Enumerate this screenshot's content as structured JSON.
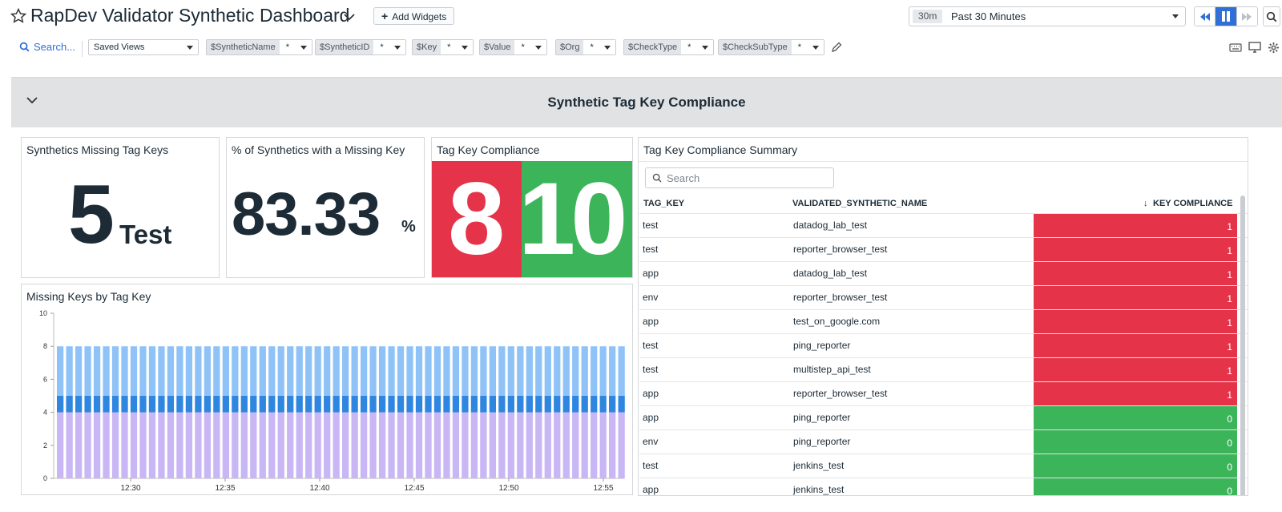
{
  "header": {
    "title": "RapDev Validator Synthetic Dashboard",
    "add_widgets": "Add Widgets",
    "time_chip": "30m",
    "time_range": "Past 30 Minutes"
  },
  "filters": {
    "search": "Search...",
    "saved_views": "Saved Views",
    "vars": [
      {
        "name": "$SyntheticName",
        "value": "*"
      },
      {
        "name": "$SyntheticID",
        "value": "*"
      },
      {
        "name": "$Key",
        "value": "*"
      },
      {
        "name": "$Value",
        "value": "*"
      },
      {
        "name": "$Org",
        "value": "*"
      },
      {
        "name": "$CheckType",
        "value": "*"
      },
      {
        "name": "$CheckSubType",
        "value": "*"
      }
    ]
  },
  "group": {
    "title": "Synthetic Tag Key Compliance"
  },
  "widgets": {
    "missing_keys": {
      "title": "Synthetics Missing Tag Keys",
      "value": "5",
      "unit": "Test"
    },
    "pct_missing": {
      "title": "% of Synthetics with a Missing Key",
      "value": "83.33",
      "unit": "%"
    },
    "compliance": {
      "title": "Tag Key Compliance",
      "red_value": "8",
      "green_value": "10",
      "red_color": "#e5344a",
      "green_color": "#3cb55a"
    },
    "chart": {
      "title": "Missing Keys by Tag Key"
    },
    "table": {
      "title": "Tag Key Compliance Summary",
      "search_placeholder": "Search",
      "headers": [
        "TAG_KEY",
        "VALIDATED_SYNTHETIC_NAME",
        "KEY COMPLIANCE"
      ],
      "rows": [
        {
          "key": "test",
          "name": "datadog_lab_test",
          "value": "1",
          "status": "red"
        },
        {
          "key": "test",
          "name": "reporter_browser_test",
          "value": "1",
          "status": "red"
        },
        {
          "key": "app",
          "name": "datadog_lab_test",
          "value": "1",
          "status": "red"
        },
        {
          "key": "env",
          "name": "reporter_browser_test",
          "value": "1",
          "status": "red"
        },
        {
          "key": "app",
          "name": "test_on_google.com",
          "value": "1",
          "status": "red"
        },
        {
          "key": "test",
          "name": "ping_reporter",
          "value": "1",
          "status": "red"
        },
        {
          "key": "test",
          "name": "multistep_api_test",
          "value": "1",
          "status": "red"
        },
        {
          "key": "app",
          "name": "reporter_browser_test",
          "value": "1",
          "status": "red"
        },
        {
          "key": "app",
          "name": "ping_reporter",
          "value": "0",
          "status": "green"
        },
        {
          "key": "env",
          "name": "ping_reporter",
          "value": "0",
          "status": "green"
        },
        {
          "key": "test",
          "name": "jenkins_test",
          "value": "0",
          "status": "green"
        },
        {
          "key": "app",
          "name": "jenkins_test",
          "value": "0",
          "status": "green"
        }
      ]
    }
  },
  "chart_data": {
    "type": "bar",
    "stacked": true,
    "title": "Missing Keys by Tag Key",
    "ylim": [
      0,
      10
    ],
    "yticks": [
      0,
      2,
      4,
      6,
      8,
      10
    ],
    "xticks": [
      "12:30",
      "12:35",
      "12:40",
      "12:45",
      "12:50",
      "12:55"
    ],
    "bar_count": 62,
    "series": [
      {
        "values_each": 4,
        "color": "#c8b6f5"
      },
      {
        "values_each": 1,
        "color": "#2f86e0"
      },
      {
        "values_each": 3,
        "color": "#8fc3f7"
      }
    ]
  }
}
